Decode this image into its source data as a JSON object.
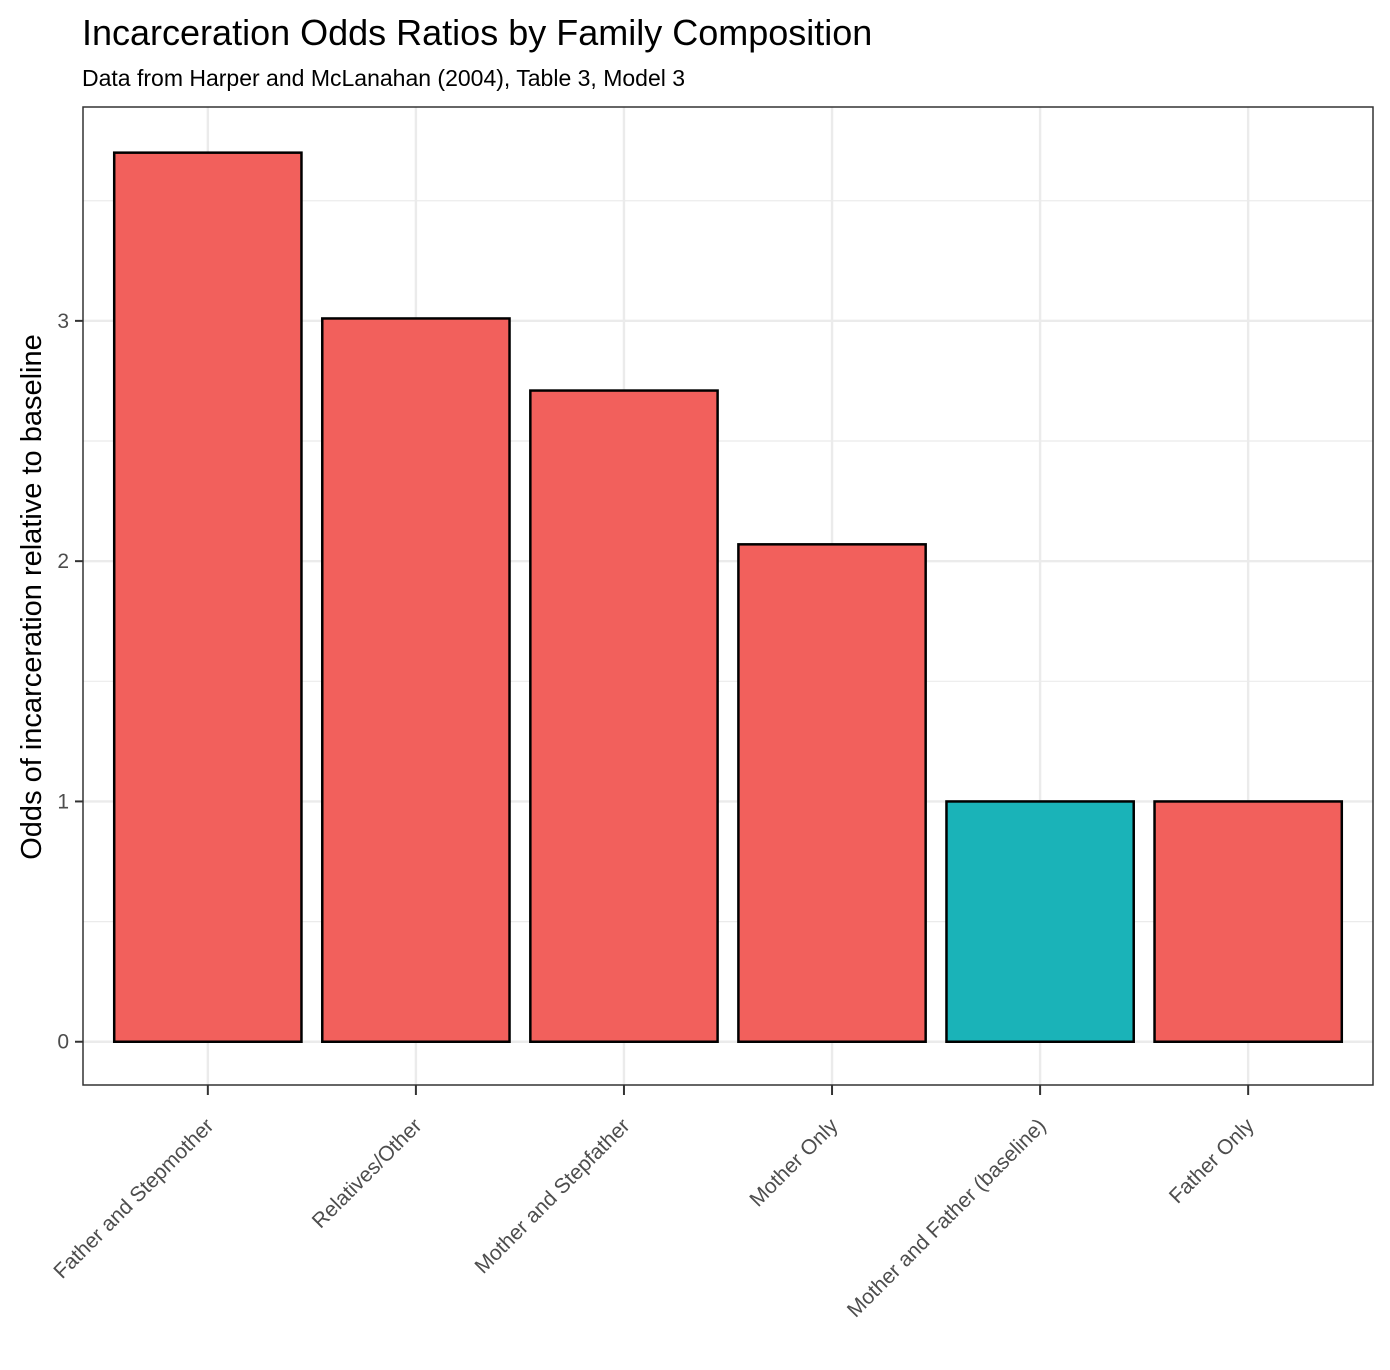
{
  "title": "Incarceration Odds Ratios by Family Composition",
  "subtitle": "Data from Harper and McLanahan (2004), Table 3, Model 3",
  "chart_data": {
    "type": "bar",
    "title": "Incarceration Odds Ratios by Family Composition",
    "subtitle": "Data from Harper and McLanahan (2004), Table 3, Model 3",
    "xlabel": "",
    "ylabel": "Odds of incarceration relative to baseline",
    "categories": [
      "Father and Stepmother",
      "Relatives/Other",
      "Mother and Stepfather",
      "Mother Only",
      "Mother and Father (baseline)",
      "Father Only"
    ],
    "values": [
      3.7,
      3.01,
      2.71,
      2.07,
      1.0,
      1.0
    ],
    "baseline": [
      false,
      false,
      false,
      false,
      true,
      false
    ],
    "yticks": [
      0,
      1,
      2,
      3
    ],
    "ytick_labels": [
      "0",
      "1",
      "2",
      "3"
    ],
    "ylim": [
      -0.18,
      3.89
    ],
    "grid": true,
    "legend": "none",
    "colors": {
      "bar": "#F2605C",
      "baseline_bar": "#1AB3B8",
      "bar_outline": "#000000",
      "grid": "#EBEBEB",
      "panel_border": "#333333"
    }
  }
}
